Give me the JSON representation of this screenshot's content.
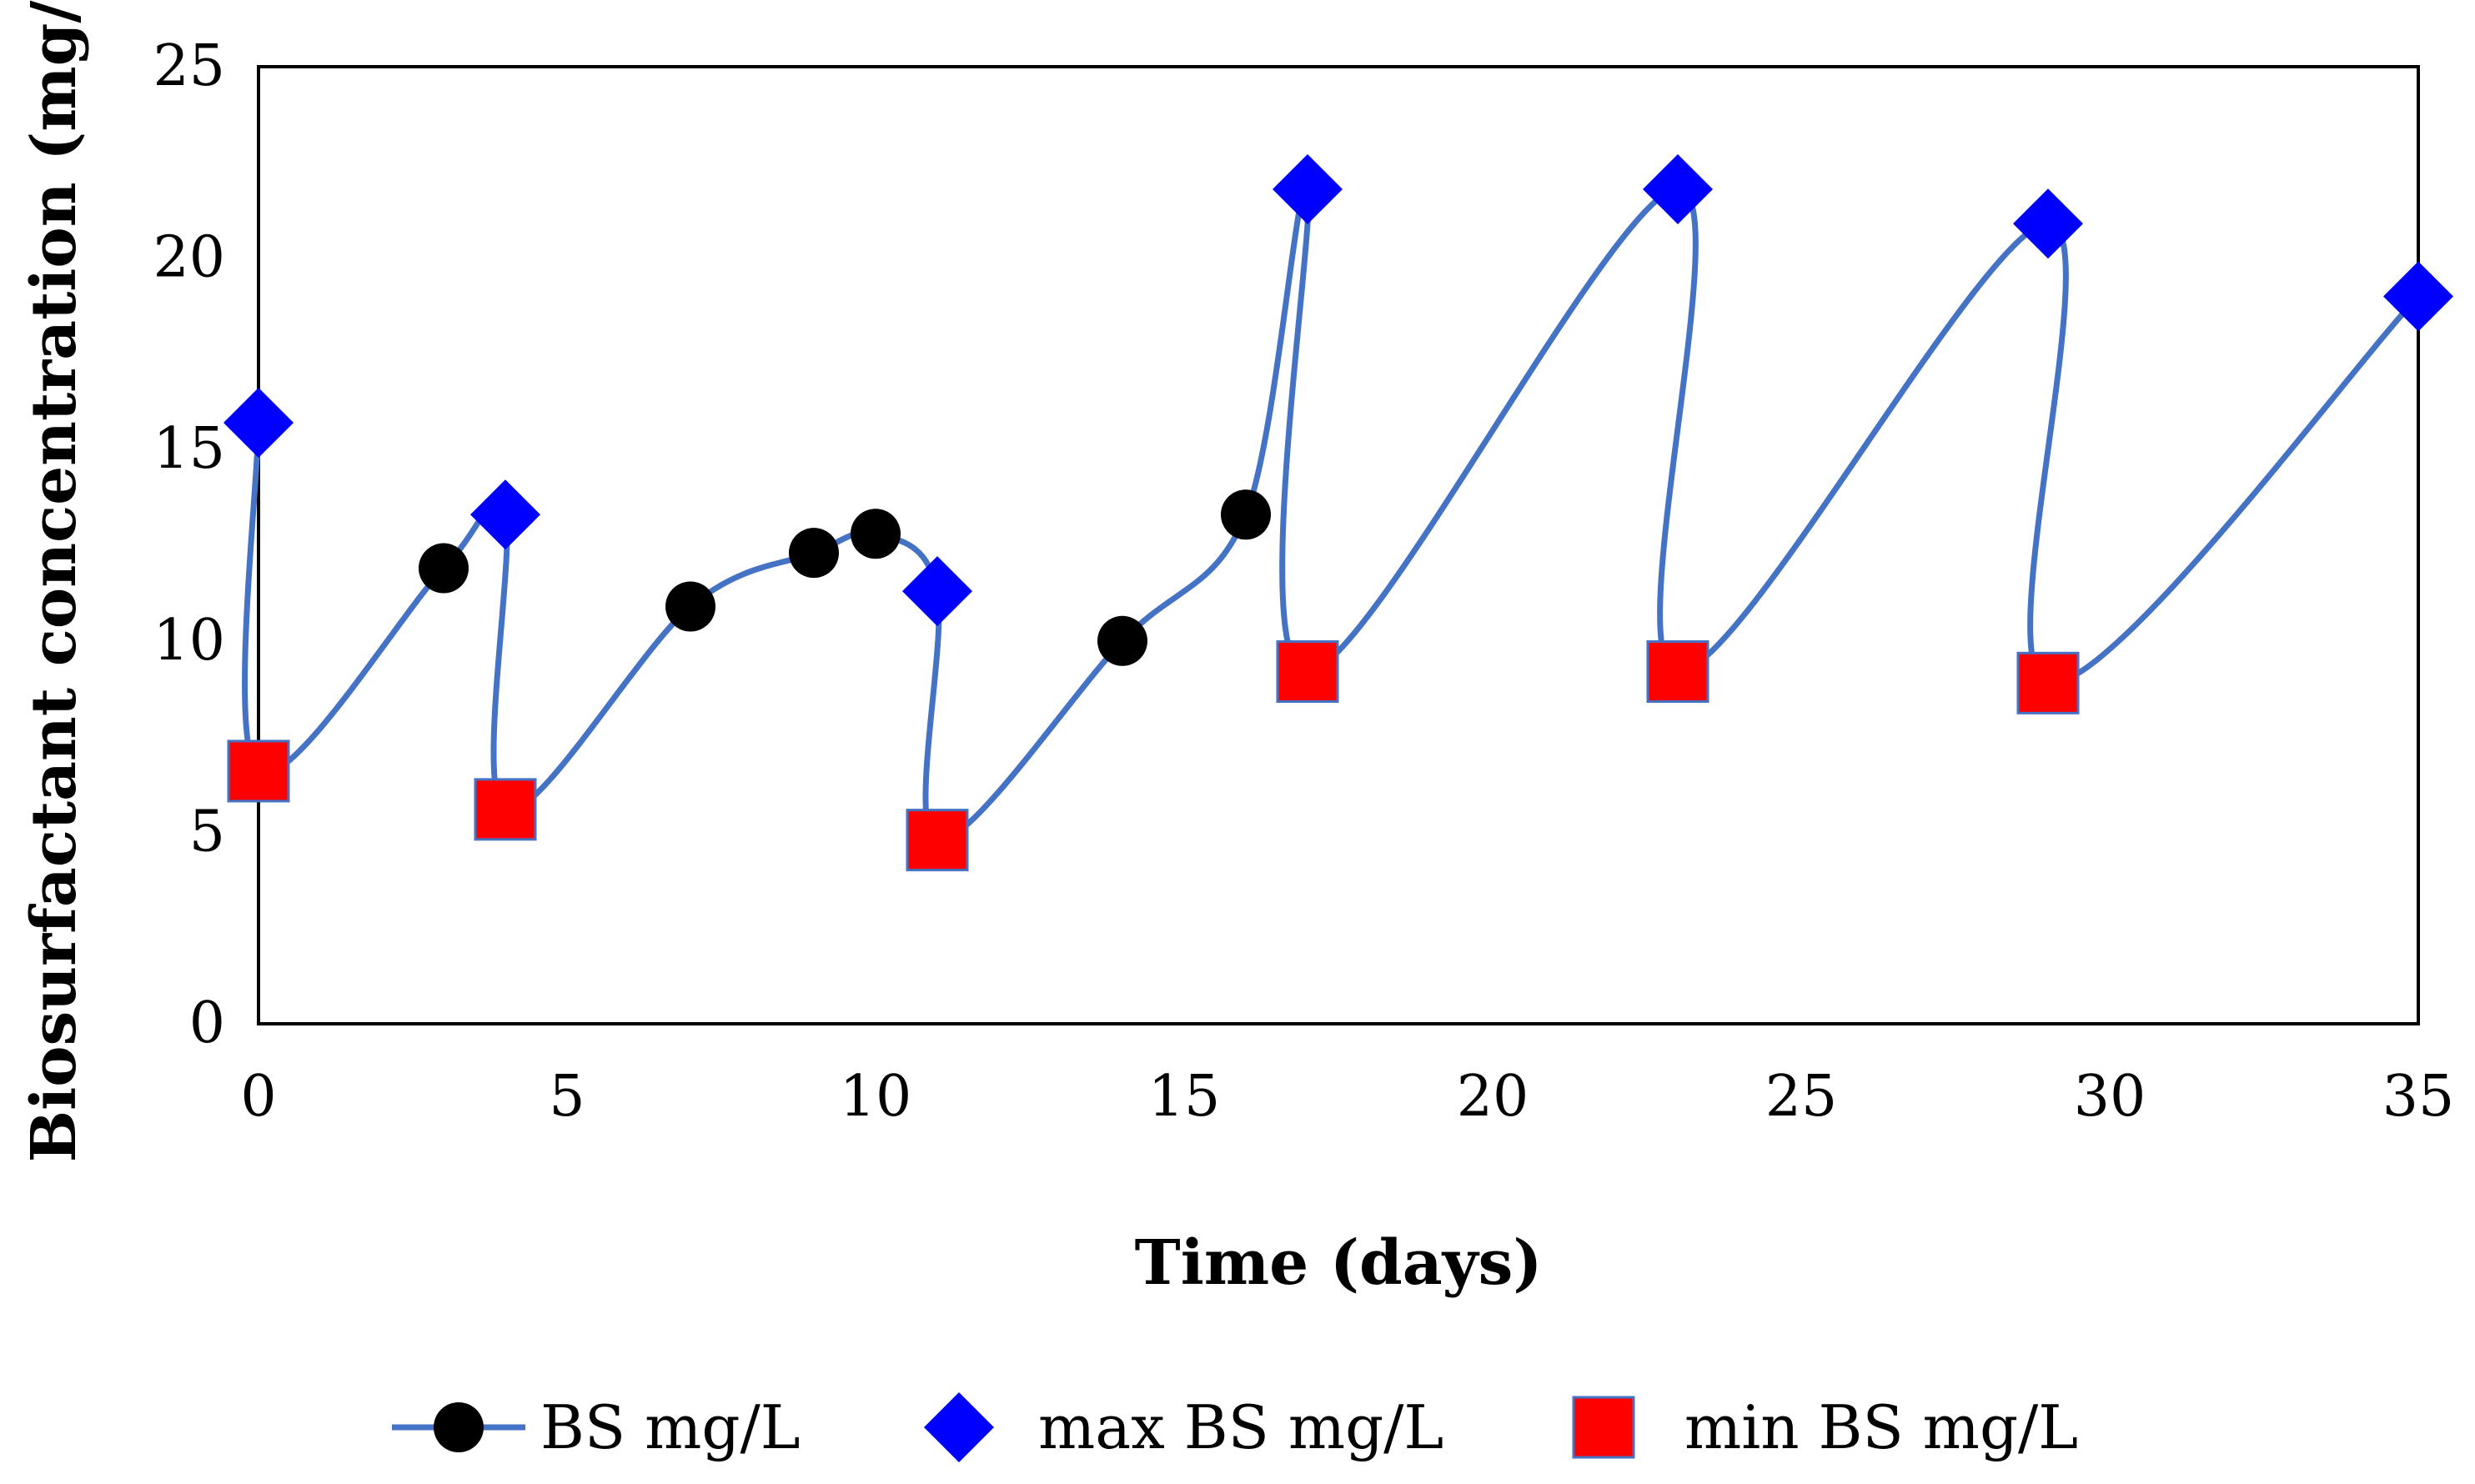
{
  "chart_data": {
    "type": "line",
    "title": "",
    "xlabel": "Time (days)",
    "ylabel": "Biosurfactant concentration (mg/L)",
    "xlim": [
      0,
      35
    ],
    "ylim": [
      0,
      25
    ],
    "xticks": [
      "0",
      "5",
      "10",
      "15",
      "20",
      "25",
      "30",
      "35"
    ],
    "yticks": [
      "0",
      "5",
      "10",
      "15",
      "20",
      "25"
    ],
    "grid": false,
    "legend_position": "bottom",
    "colors": {
      "line": "#4472C4",
      "bs": "#000000",
      "max": "#0000FF",
      "min": "#FF0000"
    },
    "line_path": [
      {
        "x": 0,
        "y": 15.7
      },
      {
        "x": 0,
        "y": 6.6
      },
      {
        "x": 3,
        "y": 11.9
      },
      {
        "x": 4,
        "y": 13.3
      },
      {
        "x": 4,
        "y": 5.6
      },
      {
        "x": 7,
        "y": 10.9
      },
      {
        "x": 9,
        "y": 12.3
      },
      {
        "x": 10,
        "y": 12.8
      },
      {
        "x": 11,
        "y": 11.3
      },
      {
        "x": 11,
        "y": 4.8
      },
      {
        "x": 14,
        "y": 10.0
      },
      {
        "x": 16,
        "y": 13.3
      },
      {
        "x": 17,
        "y": 21.8
      },
      {
        "x": 17,
        "y": 9.2
      },
      {
        "x": 23,
        "y": 21.8
      },
      {
        "x": 23,
        "y": 9.2
      },
      {
        "x": 29,
        "y": 20.9
      },
      {
        "x": 29,
        "y": 8.9
      },
      {
        "x": 35,
        "y": 19.0
      }
    ],
    "series": [
      {
        "name": "BS mg/L",
        "marker": "circle",
        "points": [
          {
            "x": 3,
            "y": 11.9
          },
          {
            "x": 7,
            "y": 10.9
          },
          {
            "x": 9,
            "y": 12.3
          },
          {
            "x": 10,
            "y": 12.8
          },
          {
            "x": 14,
            "y": 10.0
          },
          {
            "x": 16,
            "y": 13.3
          }
        ]
      },
      {
        "name": "max BS mg/L",
        "marker": "diamond",
        "points": [
          {
            "x": 0,
            "y": 15.7
          },
          {
            "x": 4,
            "y": 13.3
          },
          {
            "x": 11,
            "y": 11.3
          },
          {
            "x": 17,
            "y": 21.8
          },
          {
            "x": 23,
            "y": 21.8
          },
          {
            "x": 29,
            "y": 20.9
          },
          {
            "x": 35,
            "y": 19.0
          }
        ]
      },
      {
        "name": "min BS mg/L",
        "marker": "square",
        "points": [
          {
            "x": 0,
            "y": 6.6
          },
          {
            "x": 4,
            "y": 5.6
          },
          {
            "x": 11,
            "y": 4.8
          },
          {
            "x": 17,
            "y": 9.2
          },
          {
            "x": 23,
            "y": 9.2
          },
          {
            "x": 29,
            "y": 8.9
          }
        ]
      }
    ]
  }
}
